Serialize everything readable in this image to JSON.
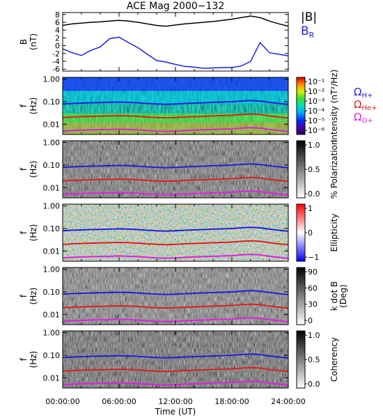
{
  "chart_data": {
    "title": "ACE Mag 2000−132",
    "xlabel": "Time (UT)",
    "x_ticks": [
      "00:00:00",
      "06:00:00",
      "12:00:00",
      "18:00:00",
      "24:00:00"
    ],
    "xlim_hours": [
      0,
      24
    ],
    "panels": [
      {
        "id": "field",
        "type": "line",
        "ylabel_line1": "B",
        "ylabel_line2": "(nT)",
        "ylim": [
          -6.5,
          8.5
        ],
        "y_ticks": [
          8,
          6,
          4,
          2,
          0,
          -2,
          -4,
          -6
        ],
        "series": [
          {
            "name": "|B|",
            "color": "#000000",
            "x": [
              0,
              1,
              2,
              3,
              4,
              5,
              6,
              7,
              8,
              9,
              10,
              11,
              12,
              13,
              14,
              15,
              16,
              17,
              18,
              19,
              20,
              21,
              22,
              23,
              24
            ],
            "y": [
              5.2,
              5.6,
              5.8,
              6.0,
              6.1,
              6.3,
              6.5,
              6.3,
              6.0,
              5.6,
              5.2,
              5.0,
              5.3,
              5.6,
              5.8,
              6.0,
              6.2,
              6.5,
              6.8,
              7.2,
              7.6,
              7.2,
              6.3,
              5.6,
              5.0
            ]
          },
          {
            "name": "B",
            "subscript": "R",
            "color": "#1f1fdd",
            "x": [
              0,
              1,
              2,
              3,
              4,
              5,
              6,
              7,
              8,
              9,
              10,
              11,
              12,
              13,
              14,
              15,
              16,
              17,
              18,
              19,
              20,
              21,
              22,
              23,
              24
            ],
            "y": [
              -0.8,
              -1.8,
              -2.5,
              -1.2,
              -0.3,
              1.8,
              2.2,
              0.8,
              -0.5,
              -2.2,
              -3.8,
              -4.2,
              -4.8,
              -5.3,
              -5.5,
              -5.8,
              -5.7,
              -5.6,
              -5.6,
              -5.2,
              -4.0,
              0.8,
              -1.8,
              -2.2,
              -2.6
            ]
          }
        ]
      },
      {
        "id": "intensity",
        "type": "heatmap",
        "ylabel_line1": "f",
        "ylabel_line2": "(Hz)",
        "y_scale": "log",
        "ylim": [
          0.0035,
          1.2
        ],
        "y_ticks": [
          "1.00",
          "0.10",
          "0.01"
        ],
        "colorbar": {
          "label": "Intensity (nT²/Hz)",
          "ticks": [
            "10⁻¹",
            "10⁻²",
            "10⁻³",
            "10⁻⁴",
            "10⁻⁵",
            "10⁻⁶"
          ]
        }
      },
      {
        "id": "polarization",
        "type": "heatmap",
        "ylabel_line1": "f",
        "ylabel_line2": "(Hz)",
        "y_scale": "log",
        "ylim": [
          0.0035,
          1.2
        ],
        "y_ticks": [
          "1.00",
          "0.10",
          "0.01"
        ],
        "colorbar": {
          "label": "% Polarization",
          "ticks": [
            "1.0",
            "0.5",
            "0.0"
          ]
        }
      },
      {
        "id": "ellipticity",
        "type": "heatmap",
        "ylabel_line1": "f",
        "ylabel_line2": "(Hz)",
        "y_scale": "log",
        "ylim": [
          0.0035,
          1.2
        ],
        "y_ticks": [
          "1.00",
          "0.10",
          "0.01"
        ],
        "colorbar": {
          "label": "Ellipticity",
          "ticks": [
            "1",
            "0",
            "−1"
          ]
        }
      },
      {
        "id": "kdotb",
        "type": "heatmap",
        "ylabel_line1": "f",
        "ylabel_line2": "(Hz)",
        "y_scale": "log",
        "ylim": [
          0.0035,
          1.2
        ],
        "y_ticks": [
          "1.00",
          "0.10",
          "0.01"
        ],
        "colorbar": {
          "label": "k dot B",
          "label2": "(Deg)",
          "ticks": [
            "90",
            "60",
            "30",
            "0"
          ]
        }
      },
      {
        "id": "coherency",
        "type": "heatmap",
        "ylabel_line1": "f",
        "ylabel_line2": "(Hz)",
        "y_scale": "log",
        "ylim": [
          0.0035,
          1.2
        ],
        "y_ticks": [
          "1.00",
          "0.10",
          "0.01"
        ],
        "colorbar": {
          "label": "Coherency",
          "ticks": [
            "1.0",
            "0.5",
            "0.0"
          ]
        }
      }
    ],
    "gyrofrequencies": {
      "x": [
        0,
        1,
        2,
        3,
        4,
        5,
        6,
        7,
        8,
        9,
        10,
        11,
        12,
        13,
        14,
        15,
        16,
        17,
        18,
        19,
        20,
        21,
        22,
        23,
        24
      ],
      "series": [
        {
          "name": "Ω",
          "subscript": "H+",
          "color": "#1f1fdd",
          "y": [
            0.079,
            0.083,
            0.086,
            0.089,
            0.091,
            0.093,
            0.096,
            0.093,
            0.089,
            0.083,
            0.079,
            0.076,
            0.079,
            0.083,
            0.086,
            0.089,
            0.093,
            0.096,
            0.099,
            0.107,
            0.113,
            0.107,
            0.093,
            0.083,
            0.075
          ]
        },
        {
          "name": "Ω",
          "subscript": "He+",
          "color": "#dd1f1f",
          "y": [
            0.0198,
            0.0208,
            0.0215,
            0.0223,
            0.0227,
            0.0233,
            0.024,
            0.0233,
            0.0223,
            0.0208,
            0.0198,
            0.019,
            0.0198,
            0.0208,
            0.0215,
            0.0223,
            0.0233,
            0.024,
            0.0248,
            0.0268,
            0.0283,
            0.0268,
            0.0233,
            0.0208,
            0.0188
          ]
        },
        {
          "name": "Ω",
          "subscript": "O+",
          "color": "#e01fe0",
          "y": [
            0.0049,
            0.0052,
            0.0054,
            0.0056,
            0.0057,
            0.0058,
            0.006,
            0.0058,
            0.0056,
            0.0052,
            0.0049,
            0.0048,
            0.0049,
            0.0052,
            0.0054,
            0.0056,
            0.0058,
            0.006,
            0.0062,
            0.0067,
            0.0071,
            0.0067,
            0.0058,
            0.0052,
            0.0047
          ]
        }
      ]
    }
  }
}
